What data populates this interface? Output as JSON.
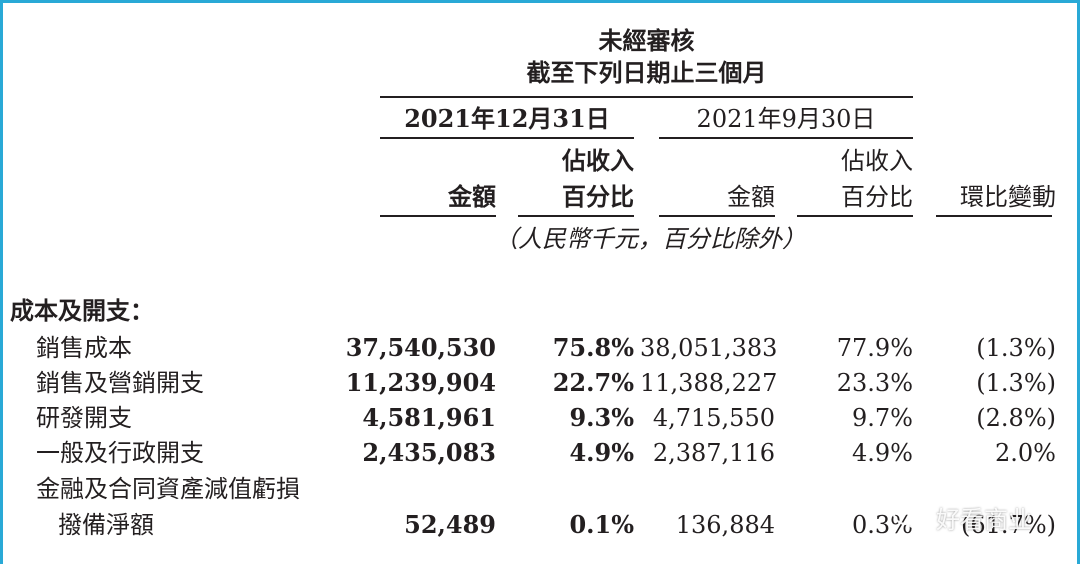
{
  "header": {
    "line1": "未經審核",
    "line2": "截至下列日期止三個月",
    "period_current": "2021年12月31日",
    "period_prior": "2021年9月30日",
    "col_amount": "金額",
    "col_pct_line1": "佔收入",
    "col_pct_line2": "百分比",
    "col_qoq": "環比變動",
    "unit_note": "（人民幣千元，百分比除外）"
  },
  "section_title": "成本及開支：",
  "rows": [
    {
      "label": "銷售成本",
      "cur_amount": "37,540,530",
      "cur_pct": "75.8%",
      "prior_amount": "38,051,383",
      "prior_pct": "77.9%",
      "change": "(1.3%)"
    },
    {
      "label": "銷售及營銷開支",
      "cur_amount": "11,239,904",
      "cur_pct": "22.7%",
      "prior_amount": "11,388,227",
      "prior_pct": "23.3%",
      "change": "(1.3%)"
    },
    {
      "label": "研發開支",
      "cur_amount": "4,581,961",
      "cur_pct": "9.3%",
      "prior_amount": "4,715,550",
      "prior_pct": "9.7%",
      "change": "(2.8%)"
    },
    {
      "label": "一般及行政開支",
      "cur_amount": "2,435,083",
      "cur_pct": "4.9%",
      "prior_amount": "2,387,116",
      "prior_pct": "4.9%",
      "change": "2.0%"
    },
    {
      "label_line1": "金融及合同資產減值虧損",
      "label": "撥備淨額",
      "cur_amount": "52,489",
      "cur_pct": "0.1%",
      "prior_amount": "136,884",
      "prior_pct": "0.3%",
      "change": "(61.7%)"
    }
  ],
  "watermark": {
    "text": "好看商业",
    "icon": "wechat-icon"
  },
  "colors": {
    "frame": "#29a9d6",
    "text": "#231f20"
  }
}
